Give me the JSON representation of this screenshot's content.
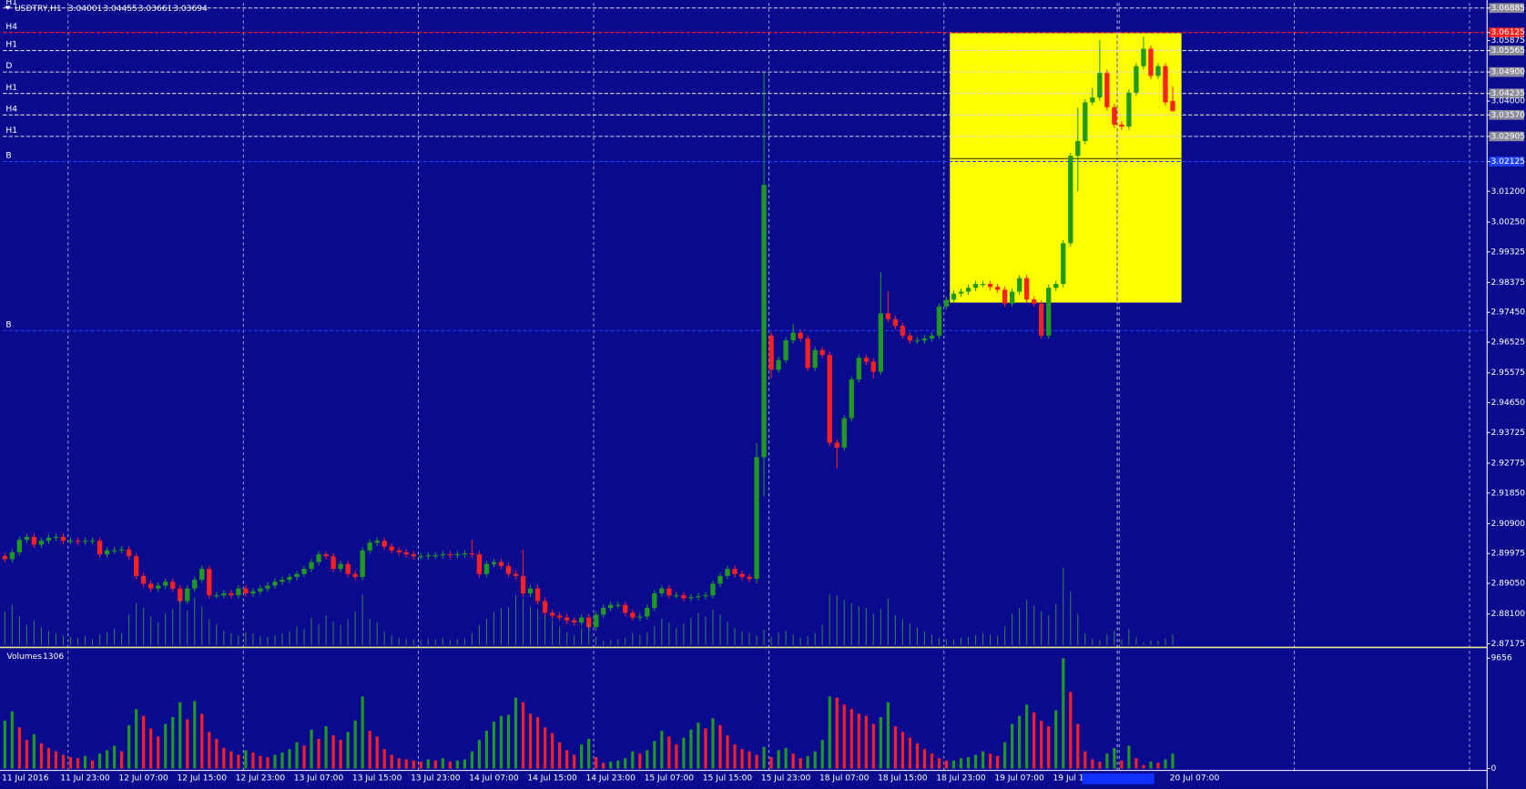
{
  "chart_data": [
    {
      "type": "candlestick",
      "title": "USDTRY,H1",
      "categories": [
        "11 Jul 2016",
        null,
        null,
        null,
        null,
        null,
        null,
        null,
        "11 Jul 23:00",
        null,
        null,
        null,
        null,
        null,
        null,
        null,
        "12 Jul 07:00",
        null,
        null,
        null,
        null,
        null,
        null,
        null,
        "12 Jul 15:00",
        null,
        null,
        null,
        null,
        null,
        null,
        null,
        "12 Jul 23:00",
        null,
        null,
        null,
        null,
        null,
        null,
        null,
        "13 Jul 07:00",
        null,
        null,
        null,
        null,
        null,
        null,
        null,
        "13 Jul 15:00",
        null,
        null,
        null,
        null,
        null,
        null,
        null,
        "13 Jul 23:00",
        null,
        null,
        null,
        null,
        null,
        null,
        null,
        "14 Jul 07:00",
        null,
        null,
        null,
        null,
        null,
        null,
        null,
        "14 Jul 15:00",
        null,
        null,
        null,
        null,
        null,
        null,
        null,
        "14 Jul 23:00",
        null,
        null,
        null,
        null,
        null,
        null,
        null,
        "15 Jul 07:00",
        null,
        null,
        null,
        null,
        null,
        null,
        null,
        "15 Jul 15:00",
        null,
        null,
        null,
        null,
        null,
        null,
        null,
        "15 Jul 23:00",
        null,
        null,
        null,
        null,
        null,
        null,
        null,
        "18 Jul 07:00",
        null,
        null,
        null,
        null,
        null,
        null,
        null,
        "18 Jul 15:00",
        null,
        null,
        null,
        null,
        null,
        null,
        null,
        "18 Jul 23:00",
        null,
        null,
        null,
        null,
        null,
        null,
        null,
        "19 Jul 07:00",
        null,
        null,
        null,
        null,
        null,
        null,
        null,
        "19 Jul 1",
        null,
        null,
        null,
        null,
        null,
        null,
        null,
        null,
        null,
        null,
        null,
        null,
        null,
        null,
        null,
        "20 Jul 07:00"
      ],
      "open": [
        2.899,
        2.898,
        2.9001,
        2.904,
        2.9049,
        2.9025,
        2.9037,
        2.9046,
        2.9049,
        2.9037,
        2.9037,
        2.9034,
        2.9037,
        2.9037,
        2.8995,
        2.9007,
        2.9007,
        2.901,
        2.8989,
        2.8928,
        2.8904,
        2.8889,
        2.8898,
        2.891,
        2.8889,
        2.885,
        2.8889,
        2.8916,
        2.895,
        2.8868,
        2.8868,
        2.8874,
        2.8868,
        2.8889,
        2.8874,
        2.888,
        2.8889,
        2.8898,
        2.891,
        2.8916,
        2.8925,
        2.8934,
        2.895,
        2.8971,
        2.8995,
        2.8989,
        2.895,
        2.8965,
        2.8934,
        2.8925,
        2.9007,
        2.9031,
        2.9037,
        2.9019,
        2.9007,
        2.9001,
        2.8995,
        2.8989,
        2.8989,
        2.8992,
        2.8992,
        2.8995,
        2.8992,
        2.8995,
        2.8998,
        2.8995,
        2.8934,
        2.8965,
        2.8971,
        2.8959,
        2.8934,
        2.8928,
        2.8874,
        2.8889,
        2.885,
        2.8814,
        2.8805,
        2.8799,
        2.879,
        2.8784,
        2.8799,
        2.8769,
        2.8808,
        2.8829,
        2.8838,
        2.8838,
        2.8814,
        2.8799,
        2.8802,
        2.8829,
        2.8874,
        2.8889,
        2.8868,
        2.8868,
        2.8859,
        2.8862,
        2.8865,
        2.8868,
        2.8904,
        2.8928,
        2.895,
        2.8934,
        2.8925,
        2.8919,
        2.9296,
        2.9673,
        2.9567,
        2.9597,
        2.9658,
        2.9682,
        2.9664,
        2.9573,
        2.9628,
        2.9613,
        2.9341,
        2.9326,
        2.9417,
        2.9537,
        2.9604,
        2.9592,
        2.9561,
        2.9742,
        2.9724,
        2.9703,
        2.9673,
        2.9658,
        2.9658,
        2.9664,
        2.9673,
        2.9763,
        2.9784,
        2.9803,
        2.9809,
        2.9821,
        2.9833,
        2.9833,
        2.9824,
        2.9815,
        2.9772,
        2.9809,
        2.9851,
        2.9785,
        2.9772,
        2.9673,
        2.9821,
        2.9833,
        2.9959,
        3.023,
        3.0276,
        3.0396,
        3.0411,
        3.0487,
        3.0381,
        3.0327,
        3.0321,
        3.0426,
        3.0508,
        3.0562,
        3.0478,
        3.0508,
        3.04001
      ],
      "high": [
        2.9,
        2.9011,
        2.905,
        2.9059,
        2.9059,
        2.9047,
        2.9056,
        2.9059,
        2.9059,
        2.9047,
        2.9047,
        2.9047,
        2.9047,
        2.9047,
        2.9017,
        2.9017,
        2.902,
        2.902,
        2.8999,
        2.8938,
        2.8914,
        2.8908,
        2.892,
        2.892,
        2.8899,
        2.8899,
        2.8926,
        2.896,
        2.896,
        2.8878,
        2.8884,
        2.8884,
        2.8899,
        2.8899,
        2.889,
        2.8899,
        2.8908,
        2.892,
        2.8926,
        2.8935,
        2.8944,
        2.896,
        2.8981,
        2.9005,
        2.9005,
        2.8999,
        2.8975,
        2.8975,
        2.8944,
        2.9017,
        2.9041,
        2.9047,
        2.9047,
        2.9029,
        2.9017,
        2.9011,
        2.9005,
        2.8999,
        2.9002,
        2.9002,
        2.9005,
        2.9005,
        2.9005,
        2.9008,
        2.904,
        2.9005,
        2.8975,
        2.8981,
        2.8981,
        2.8969,
        2.8944,
        2.901,
        2.8899,
        2.8899,
        2.886,
        2.8824,
        2.8815,
        2.8809,
        2.88,
        2.8809,
        2.8809,
        2.8818,
        2.8839,
        2.8848,
        2.8848,
        2.8848,
        2.8824,
        2.8812,
        2.8839,
        2.8884,
        2.8899,
        2.8899,
        2.8878,
        2.8878,
        2.8872,
        2.8875,
        2.8878,
        2.8914,
        2.8938,
        2.896,
        2.896,
        2.8944,
        2.8935,
        2.934,
        3.0487,
        2.9683,
        2.9607,
        2.9668,
        2.971,
        2.9692,
        2.9674,
        2.9638,
        2.9638,
        2.9623,
        2.9351,
        2.9427,
        2.9547,
        2.9614,
        2.9614,
        2.9602,
        2.987,
        2.981,
        2.9734,
        2.9713,
        2.9683,
        2.9668,
        2.9674,
        2.9683,
        2.9773,
        2.9794,
        2.9813,
        2.9819,
        2.9831,
        2.9843,
        2.9843,
        2.9843,
        2.9834,
        2.9825,
        2.9819,
        2.9861,
        2.9861,
        2.9795,
        2.9782,
        2.9831,
        2.9843,
        2.9969,
        3.024,
        3.038,
        3.0406,
        3.044,
        3.059,
        3.0497,
        3.0391,
        3.0337,
        3.0436,
        3.0518,
        3.06,
        3.0572,
        3.0518,
        3.0518,
        3.04455
      ],
      "low": [
        2.897,
        2.897,
        2.8991,
        2.903,
        2.9015,
        2.9015,
        2.9027,
        2.9036,
        2.9027,
        2.9027,
        2.9024,
        2.9024,
        2.9027,
        2.8985,
        2.8985,
        2.8997,
        2.8997,
        2.8979,
        2.8918,
        2.8894,
        2.8879,
        2.8879,
        2.8888,
        2.8879,
        2.884,
        2.884,
        2.8879,
        2.8906,
        2.8858,
        2.8858,
        2.8858,
        2.8858,
        2.8858,
        2.8864,
        2.8864,
        2.887,
        2.8879,
        2.8888,
        2.89,
        2.8906,
        2.8915,
        2.8924,
        2.894,
        2.8961,
        2.8979,
        2.894,
        2.894,
        2.8924,
        2.8915,
        2.8915,
        2.8997,
        2.9021,
        2.9009,
        2.8997,
        2.8991,
        2.8985,
        2.8979,
        2.8979,
        2.8979,
        2.8982,
        2.8982,
        2.8982,
        2.8982,
        2.8985,
        2.8985,
        2.8924,
        2.8924,
        2.8955,
        2.8949,
        2.8924,
        2.8918,
        2.8864,
        2.8864,
        2.884,
        2.8804,
        2.8795,
        2.8789,
        2.878,
        2.8774,
        2.8774,
        2.8759,
        2.8759,
        2.8798,
        2.8819,
        2.8828,
        2.8804,
        2.8789,
        2.8789,
        2.8792,
        2.8819,
        2.8864,
        2.8858,
        2.8858,
        2.8849,
        2.8849,
        2.8852,
        2.8855,
        2.8858,
        2.8894,
        2.8918,
        2.8924,
        2.8915,
        2.8909,
        2.8905,
        2.9175,
        2.954,
        2.9557,
        2.9587,
        2.9648,
        2.9654,
        2.9563,
        2.9563,
        2.9603,
        2.9331,
        2.926,
        2.9316,
        2.9407,
        2.9527,
        2.9582,
        2.954,
        2.9551,
        2.9714,
        2.9693,
        2.9663,
        2.9648,
        2.9648,
        2.9648,
        2.9654,
        2.9663,
        2.9753,
        2.9774,
        2.9793,
        2.9799,
        2.9811,
        2.9823,
        2.9814,
        2.9805,
        2.9762,
        2.9762,
        2.9799,
        2.9775,
        2.9762,
        2.9663,
        2.9663,
        2.9811,
        2.9823,
        2.9949,
        3.012,
        3.0266,
        3.0386,
        3.0401,
        3.0371,
        3.0317,
        3.0311,
        3.0311,
        3.0416,
        3.0498,
        3.0468,
        3.0468,
        3.0386,
        3.03661
      ],
      "close": [
        2.898,
        2.9001,
        2.904,
        2.9049,
        2.9025,
        2.9037,
        2.9046,
        2.9049,
        2.9037,
        2.9037,
        2.9034,
        2.9037,
        2.9037,
        2.8995,
        2.9007,
        2.9007,
        2.901,
        2.8989,
        2.8928,
        2.8904,
        2.8889,
        2.8898,
        2.891,
        2.8889,
        2.885,
        2.8889,
        2.8916,
        2.895,
        2.8868,
        2.8868,
        2.8874,
        2.8868,
        2.8889,
        2.8874,
        2.888,
        2.8889,
        2.8898,
        2.891,
        2.8916,
        2.8925,
        2.8934,
        2.895,
        2.8971,
        2.8995,
        2.8989,
        2.895,
        2.8965,
        2.8934,
        2.8925,
        2.9007,
        2.9031,
        2.9037,
        2.9019,
        2.9007,
        2.9001,
        2.8995,
        2.8989,
        2.8989,
        2.8992,
        2.8992,
        2.8995,
        2.8992,
        2.8995,
        2.8998,
        2.8995,
        2.8934,
        2.8965,
        2.8971,
        2.8959,
        2.8934,
        2.8928,
        2.8874,
        2.8889,
        2.885,
        2.8814,
        2.8805,
        2.8799,
        2.879,
        2.8784,
        2.8799,
        2.8769,
        2.8808,
        2.8829,
        2.8838,
        2.8838,
        2.8814,
        2.8799,
        2.8802,
        2.8829,
        2.8874,
        2.8889,
        2.8868,
        2.8868,
        2.8859,
        2.8862,
        2.8865,
        2.8868,
        2.8904,
        2.8928,
        2.895,
        2.8934,
        2.8925,
        2.8919,
        2.9296,
        3.014,
        2.9567,
        2.9597,
        2.9658,
        2.9682,
        2.9664,
        2.9573,
        2.9628,
        2.9613,
        2.9341,
        2.9326,
        2.9417,
        2.9537,
        2.9604,
        2.9592,
        2.9561,
        2.9742,
        2.9724,
        2.9703,
        2.9673,
        2.9658,
        2.9658,
        2.9664,
        2.9673,
        2.9763,
        2.9784,
        2.9803,
        2.9809,
        2.9821,
        2.9833,
        2.9833,
        2.9824,
        2.9815,
        2.9772,
        2.9809,
        2.9851,
        2.9785,
        2.9772,
        2.9673,
        2.9821,
        2.9833,
        2.9959,
        3.023,
        3.0276,
        3.0396,
        3.0411,
        3.0487,
        3.0381,
        3.0327,
        3.0321,
        3.0426,
        3.0508,
        3.0562,
        3.0478,
        3.0508,
        3.0396,
        3.03694
      ],
      "up_color": "#1f9a1f",
      "down_color": "#ff2020",
      "ylim": [
        2.8711,
        3.0704
      ],
      "yticks": [
        3.06885,
        3.06125,
        3.05875,
        3.05565,
        {
          "value": 3.049,
          "label": "3.04900"
        },
        3.04235,
        {
          "value": 3.04,
          "label": "3.04000"
        },
        {
          "value": 3.0357,
          "label": "3.03570"
        },
        3.02905,
        3.02125,
        {
          "value": 3.012,
          "label": "3.01200"
        },
        {
          "value": 3.0025,
          "label": "3.00250"
        },
        2.99325,
        2.98375,
        {
          "value": 2.9745,
          "label": "2.97450"
        },
        2.96525,
        2.95575,
        {
          "value": 2.9465,
          "label": "2.94650"
        },
        2.93725,
        2.92775,
        {
          "value": 2.9185,
          "label": "2.91850"
        },
        {
          "value": 2.909,
          "label": "2.90900"
        },
        2.89975,
        {
          "value": 2.8905,
          "label": "2.89050"
        },
        {
          "value": 2.881,
          "label": "2.88100"
        },
        2.87175
      ],
      "grid": true,
      "levels": [
        {
          "label": "H1",
          "value": 3.06885,
          "color": "#d8d8d8"
        },
        {
          "label": "H4",
          "value": 3.06125,
          "color": "#ff2020"
        },
        {
          "label": "H1",
          "value": 3.05565,
          "color": "#d8d8d8"
        },
        {
          "label": "D",
          "value": 3.049,
          "color": "#d8d8d8"
        },
        {
          "label": "H1",
          "value": 3.04235,
          "color": "#d8d8d8"
        },
        {
          "label": "H4",
          "value": 3.0357,
          "color": "#d8d8d8"
        },
        {
          "label": "H1",
          "value": 3.02905,
          "color": "#d8d8d8"
        },
        {
          "label": "B",
          "value": 3.02125,
          "color": "#2040ff"
        },
        {
          "label": "B",
          "value": 2.96885,
          "color": "#2040ff"
        }
      ]
    },
    {
      "type": "bar",
      "title": "Volumes",
      "values": [
        4200,
        5000,
        3600,
        2500,
        3000,
        2200,
        1800,
        1500,
        1200,
        1000,
        900,
        1100,
        700,
        1300,
        1600,
        2000,
        1500,
        3800,
        5200,
        4600,
        3500,
        2800,
        3900,
        4500,
        5800,
        4300,
        5900,
        4800,
        3200,
        2600,
        1800,
        1500,
        1200,
        1600,
        1400,
        1100,
        1000,
        1200,
        1400,
        1700,
        2300,
        2000,
        3400,
        2600,
        3700,
        2900,
        2500,
        3200,
        4200,
        6300,
        3300,
        2800,
        1700,
        1200,
        900,
        800,
        700,
        600,
        800,
        700,
        900,
        600,
        700,
        800,
        1500,
        2500,
        3300,
        4100,
        4600,
        4700,
        6200,
        5800,
        4800,
        4500,
        3600,
        3100,
        2300,
        1600,
        1200,
        2100,
        2600,
        1000,
        500,
        600,
        700,
        900,
        1500,
        1300,
        1600,
        2400,
        3300,
        2800,
        2100,
        2700,
        3400,
        4000,
        3500,
        4400,
        3800,
        2900,
        2100,
        1700,
        1500,
        1200,
        1900,
        1000,
        1600,
        1800,
        1300,
        900,
        1100,
        1500,
        2500,
        6300,
        6200,
        5600,
        5200,
        4800,
        4600,
        3900,
        4500,
        5800,
        3700,
        3200,
        2700,
        2200,
        1700,
        1300,
        900,
        700,
        700,
        900,
        1000,
        1200,
        1500,
        1300,
        1100,
        2300,
        3900,
        4600,
        5600,
        4900,
        4200,
        3700,
        5100,
        9656,
        6700,
        3900,
        1500,
        800,
        600,
        1300,
        1800,
        700,
        2000,
        900,
        300,
        600,
        500,
        800,
        1306
      ],
      "up_color": "#1f9a1f",
      "down_color": "#ff2020",
      "ylim": [
        0,
        10300
      ],
      "yticks": [
        0,
        9656
      ]
    }
  ]
}
